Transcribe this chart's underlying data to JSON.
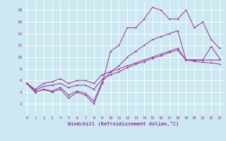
{
  "xlabel": "Windchill (Refroidissement éolien,°C)",
  "xlim": [
    -0.5,
    23.5
  ],
  "ylim": [
    0,
    19.5
  ],
  "xticks": [
    0,
    1,
    2,
    3,
    4,
    5,
    6,
    7,
    8,
    9,
    10,
    11,
    12,
    13,
    14,
    15,
    16,
    17,
    18,
    19,
    20,
    21,
    22,
    23
  ],
  "yticks": [
    2,
    4,
    6,
    8,
    10,
    12,
    14,
    16,
    18
  ],
  "bg_color": "#cce8f0",
  "line_color": "#993399",
  "grid_color": "#ffffff",
  "series": [
    [
      5.5,
      4.0,
      4.5,
      4.0,
      4.5,
      3.0,
      4.0,
      3.5,
      2.0,
      5.5,
      11.0,
      12.0,
      15.0,
      15.0,
      16.5,
      18.5,
      18.0,
      16.5,
      16.5,
      18.0,
      15.0,
      16.0,
      13.0,
      11.5
    ],
    [
      5.5,
      4.0,
      4.5,
      4.2,
      4.8,
      3.5,
      4.2,
      3.8,
      2.5,
      5.8,
      7.5,
      8.5,
      10.0,
      11.0,
      12.0,
      13.0,
      13.5,
      14.0,
      14.5,
      9.5,
      9.5,
      9.5,
      11.8,
      9.8
    ],
    [
      5.5,
      4.3,
      5.0,
      5.2,
      5.5,
      4.8,
      5.2,
      5.2,
      4.5,
      6.2,
      7.0,
      7.5,
      8.2,
      8.8,
      9.2,
      9.8,
      10.2,
      10.8,
      11.2,
      9.5,
      9.5,
      9.5,
      9.5,
      9.5
    ],
    [
      5.5,
      4.5,
      5.5,
      5.8,
      6.3,
      5.5,
      6.0,
      6.0,
      5.5,
      7.0,
      7.5,
      8.0,
      8.5,
      9.0,
      9.5,
      10.0,
      10.5,
      11.0,
      11.5,
      9.5,
      9.3,
      9.1,
      9.0,
      8.8
    ]
  ]
}
